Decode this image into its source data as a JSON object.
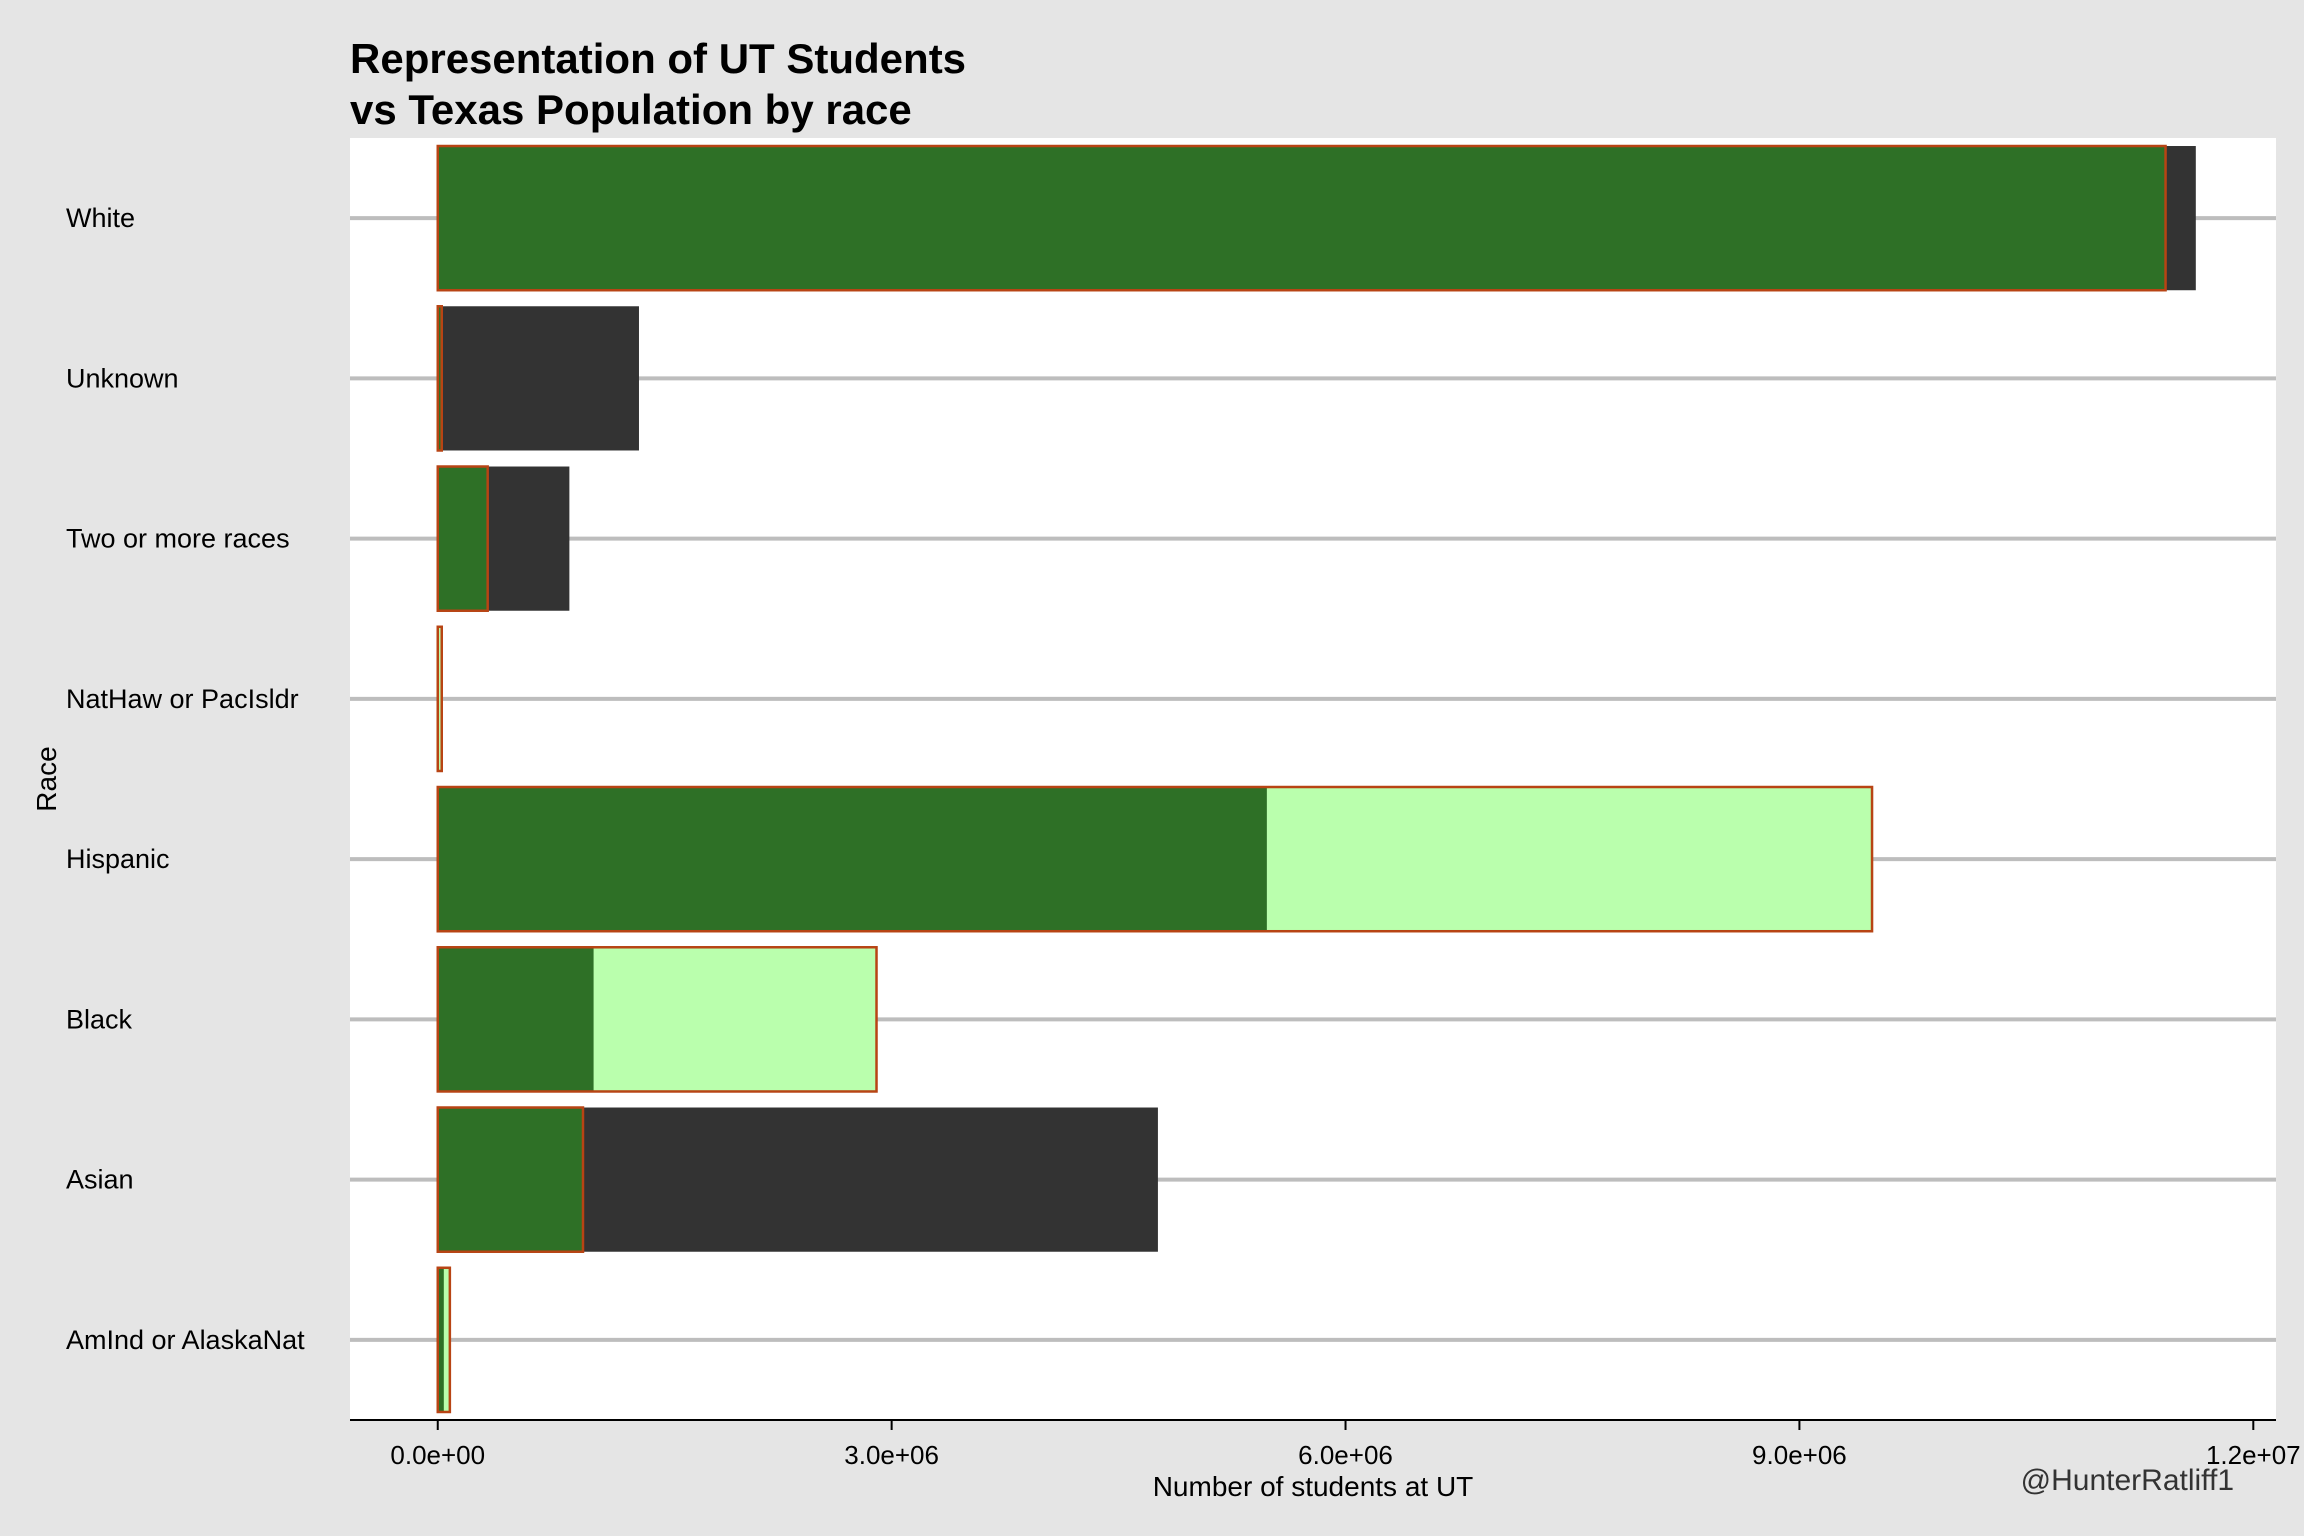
{
  "chart_data": {
    "type": "bar",
    "orientation": "horizontal",
    "title_lines": [
      "Representation of UT Students",
      "vs Texas Population by race"
    ],
    "xlabel": "Number of students at UT",
    "ylabel": "Race",
    "credit": "@HunterRatliff1",
    "xlim": [
      -580000,
      12150000
    ],
    "xticks": [
      0,
      3000000,
      6000000,
      9000000,
      12000000
    ],
    "xtick_labels": [
      "0.0e+00",
      "3.0e+06",
      "6.0e+06",
      "9.0e+06",
      "1.2e+07"
    ],
    "categories": [
      "White",
      "Unknown",
      "Two or more races",
      "NatHaw or PacIsldr",
      "Hispanic",
      "Black",
      "Asian",
      "AmInd or AlaskaNat"
    ],
    "series": [
      {
        "role": "larger",
        "values": [
          11620000,
          1330000,
          870000,
          0,
          5480000,
          1030000,
          4760000,
          40000
        ]
      },
      {
        "role": "outlined",
        "values": [
          11420000,
          15000,
          330000,
          25000,
          9480000,
          2900000,
          960000,
          80000
        ]
      }
    ],
    "colors": {
      "overrepresented": "#333333",
      "underrepresented": "#baffad",
      "overlap": "#2e7026",
      "outline": "#b84414",
      "panel": "#ffffff",
      "background": "#e5e5e5",
      "grid": "#bdbdbd"
    },
    "grid": "horizontal",
    "legend": "none"
  }
}
